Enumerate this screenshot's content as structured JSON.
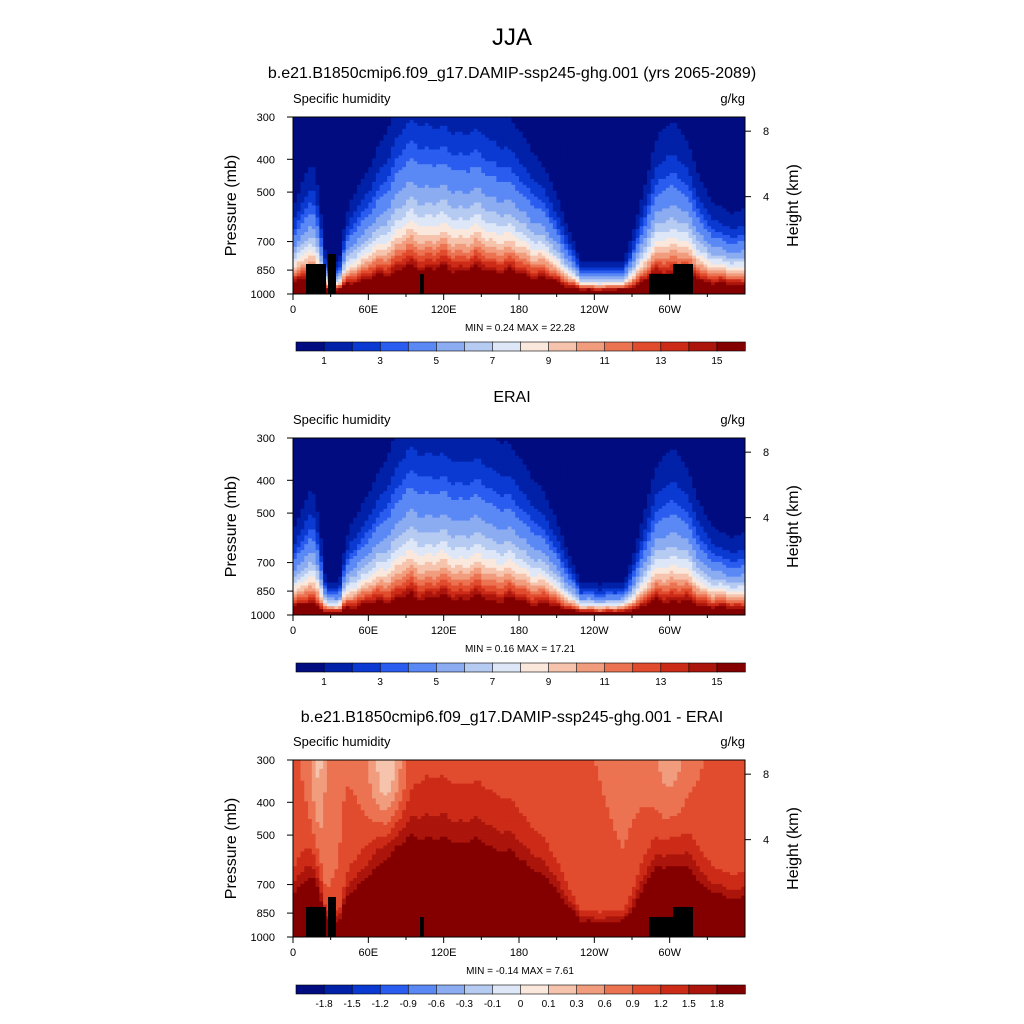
{
  "figure": {
    "title": "JJA"
  },
  "palettes": {
    "abs": [
      "#000c80",
      "#0021a8",
      "#0a3ad2",
      "#2a5cf0",
      "#5a88f5",
      "#8cacf2",
      "#b6cbf2",
      "#dde7f8",
      "#fbe8dc",
      "#f6c3ad",
      "#f29c7e",
      "#ec7352",
      "#e24c2e",
      "#cc2b17",
      "#ab150b",
      "#840000"
    ],
    "diff": [
      "#000c80",
      "#0021a8",
      "#0a3ad2",
      "#2a5cf0",
      "#5a88f5",
      "#8cacf2",
      "#b6cbf2",
      "#dde7f8",
      "#fbe8dc",
      "#f6c3ad",
      "#f29c7e",
      "#ec7352",
      "#e24c2e",
      "#cc2b17",
      "#ab150b",
      "#840000"
    ]
  },
  "chart_data": [
    {
      "type": "heatmap",
      "title": "b.e21.B1850cmip6.f09_g17.DAMIP-ssp245-ghg.001 (yrs 2065-2089)",
      "left_string": "Specific humidity",
      "right_string": "g/kg",
      "ylabel": "Pressure (mb)",
      "y2label": "Height (km)",
      "x_ticks": [
        "0",
        "60E",
        "120E",
        "180",
        "120W",
        "60W"
      ],
      "y_ticks": [
        "300",
        "400",
        "500",
        "700",
        "850",
        "1000"
      ],
      "y2_ticks": [
        "8",
        "4"
      ],
      "stats": "MIN =   0.24  MAX =  22.28",
      "colorbar_labels": [
        "1",
        "3",
        "5",
        "7",
        "9",
        "11",
        "13",
        "15"
      ],
      "levels": [
        0.5,
        1,
        1.5,
        2,
        3,
        4,
        5,
        6,
        7,
        8,
        9,
        10,
        11,
        12,
        13,
        14,
        15
      ],
      "min": 0.24,
      "max": 22.28
    },
    {
      "type": "heatmap",
      "title": "ERAI",
      "left_string": "Specific humidity",
      "right_string": "g/kg",
      "ylabel": "Pressure (mb)",
      "y2label": "Height (km)",
      "x_ticks": [
        "0",
        "60E",
        "120E",
        "180",
        "120W",
        "60W"
      ],
      "y_ticks": [
        "300",
        "400",
        "500",
        "700",
        "850",
        "1000"
      ],
      "y2_ticks": [
        "8",
        "4"
      ],
      "stats": "MIN =   0.16  MAX =  17.21",
      "colorbar_labels": [
        "1",
        "3",
        "5",
        "7",
        "9",
        "11",
        "13",
        "15"
      ],
      "levels": [
        0.5,
        1,
        1.5,
        2,
        3,
        4,
        5,
        6,
        7,
        8,
        9,
        10,
        11,
        12,
        13,
        14,
        15
      ],
      "min": 0.16,
      "max": 17.21
    },
    {
      "type": "heatmap",
      "title": "b.e21.B1850cmip6.f09_g17.DAMIP-ssp245-ghg.001 - ERAI",
      "left_string": "Specific humidity",
      "right_string": "g/kg",
      "ylabel": "Pressure (mb)",
      "y2label": "Height (km)",
      "x_ticks": [
        "0",
        "60E",
        "120E",
        "180",
        "120W",
        "60W"
      ],
      "y_ticks": [
        "300",
        "400",
        "500",
        "700",
        "850",
        "1000"
      ],
      "y2_ticks": [
        "8",
        "4"
      ],
      "stats": "MIN =  -0.14  MAX =   7.61",
      "colorbar_labels": [
        "-1.8",
        "-1.5",
        "-1.2",
        "-0.9",
        "-0.6",
        "-0.3",
        "-0.1",
        "0",
        "0.1",
        "0.3",
        "0.6",
        "0.9",
        "1.2",
        "1.5",
        "1.8"
      ],
      "levels": [
        -1.8,
        -1.5,
        -1.2,
        -0.9,
        -0.6,
        -0.3,
        -0.1,
        0,
        0.1,
        0.3,
        0.6,
        0.9,
        1.2,
        1.5,
        1.8
      ],
      "min": -0.14,
      "max": 7.61
    }
  ]
}
